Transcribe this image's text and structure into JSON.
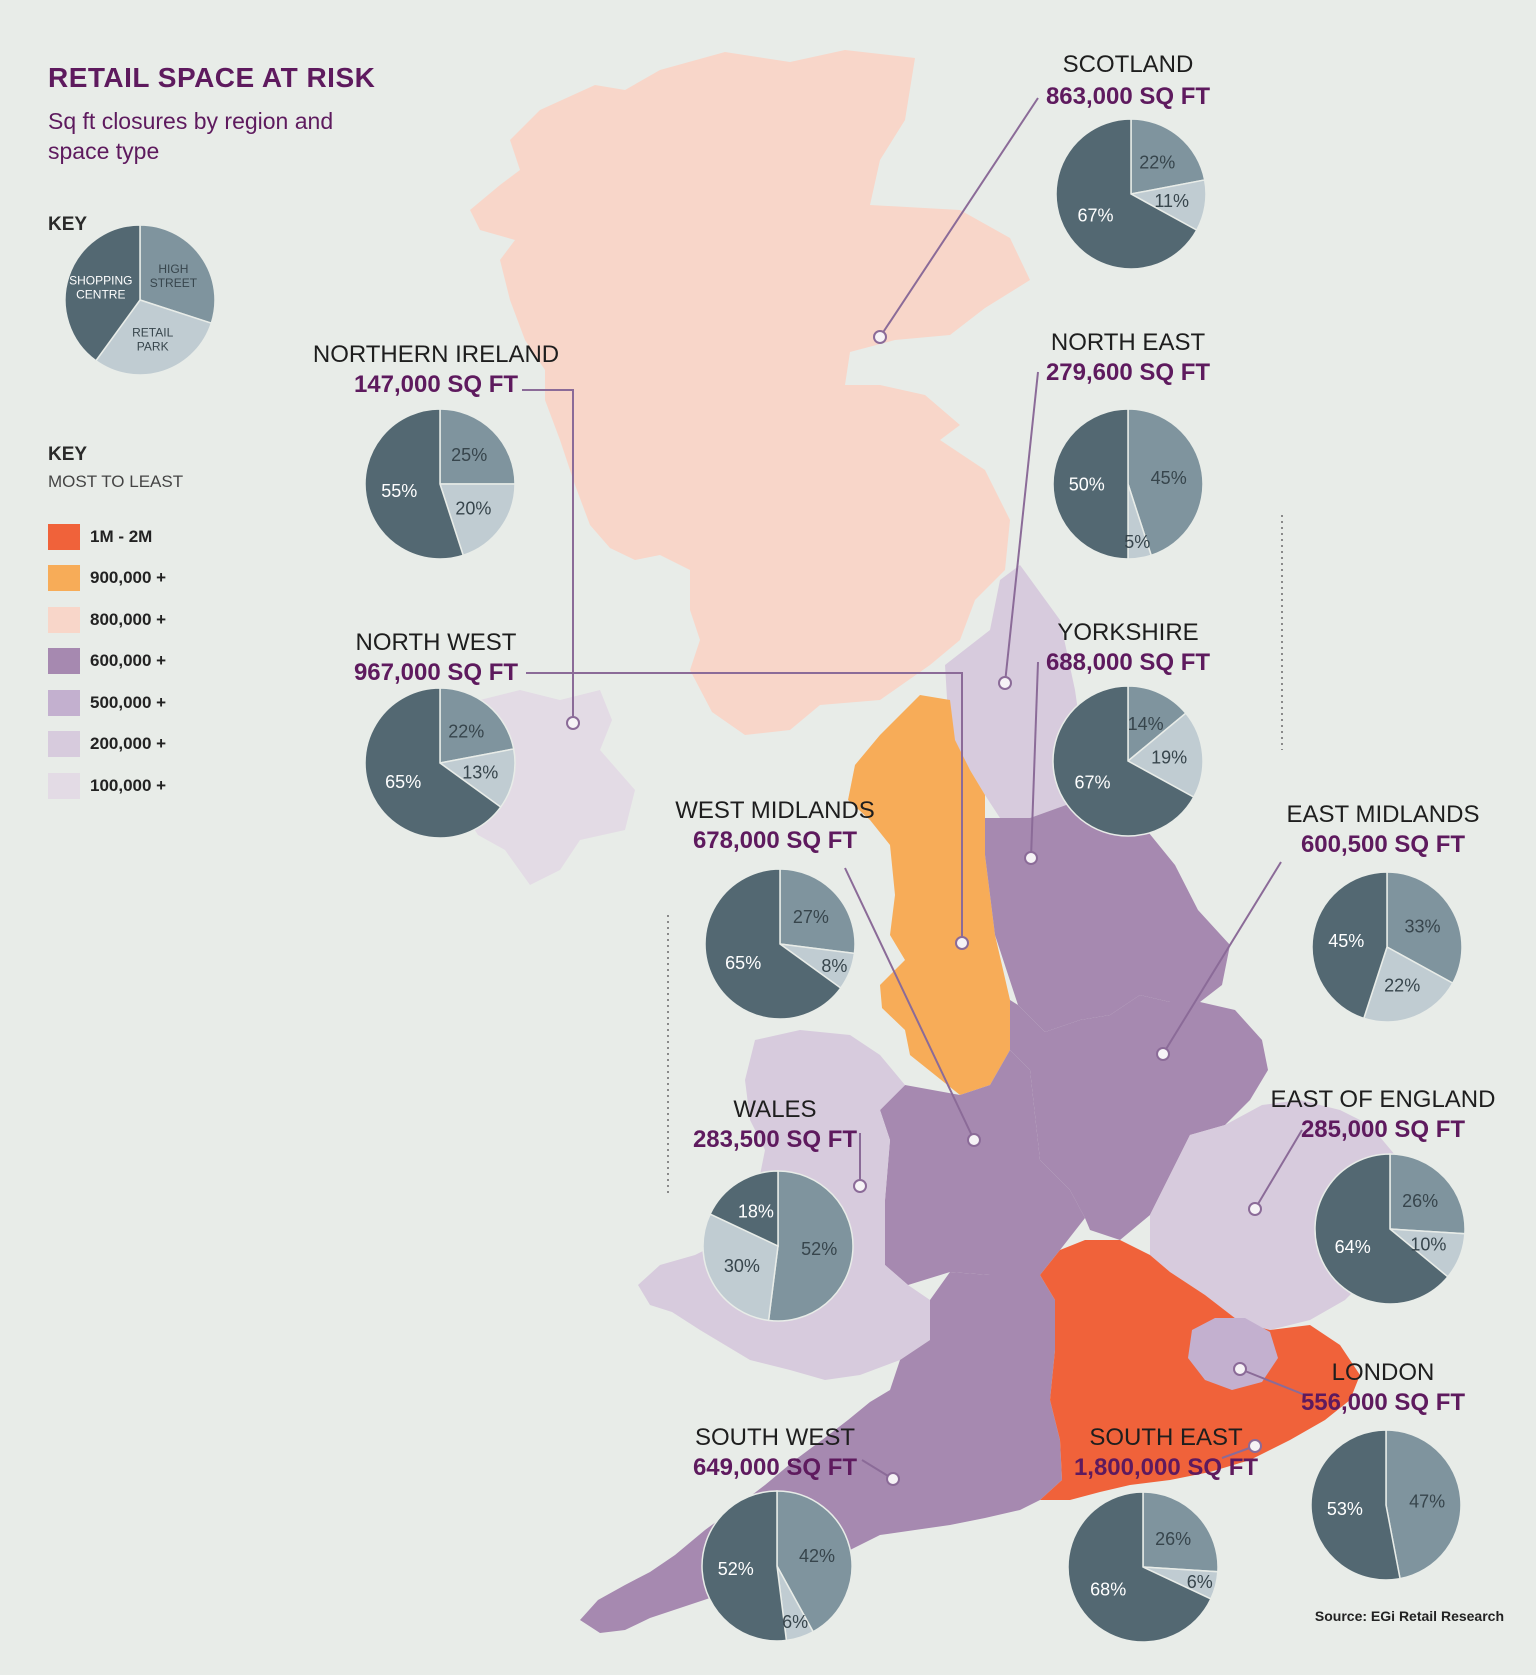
{
  "title": "RETAIL SPACE AT RISK",
  "subtitle": "Sq ft closures by region and space type",
  "key_pie": {
    "heading": "KEY",
    "segments": [
      {
        "label": "SHOPPING CENTRE",
        "pct": 40,
        "color": "#536872"
      },
      {
        "label": "HIGH STREET",
        "pct": 30,
        "color": "#7f949e"
      },
      {
        "label": "RETAIL PARK",
        "pct": 30,
        "color": "#c0ccd2"
      }
    ]
  },
  "legend": {
    "heading": "KEY",
    "subheading": "MOST TO LEAST",
    "items": [
      {
        "label": "1M - 2M",
        "color": "#f0623a"
      },
      {
        "label": "900,000 +",
        "color": "#f7ac58"
      },
      {
        "label": "800,000 +",
        "color": "#f8d6c9"
      },
      {
        "label": "600,000 +",
        "color": "#a689b0"
      },
      {
        "label": "500,000 +",
        "color": "#c3b0cf"
      },
      {
        "label": "200,000 +",
        "color": "#d7cbdd"
      },
      {
        "label": "100,000 +",
        "color": "#e3dbe5"
      }
    ]
  },
  "regions": [
    {
      "name": "SCOTLAND",
      "value": "863,000 SQ FT",
      "color": "#f8d6c9",
      "shares": {
        "high_street": 22,
        "retail_park": 11,
        "shopping_centre": 67
      }
    },
    {
      "name": "NORTHERN IRELAND",
      "value": "147,000 SQ FT",
      "color": "#e3dbe5",
      "shares": {
        "high_street": 25,
        "retail_park": 20,
        "shopping_centre": 55
      }
    },
    {
      "name": "NORTH EAST",
      "value": "279,600 SQ FT",
      "color": "#d7cbdd",
      "shares": {
        "high_street": 45,
        "retail_park": 5,
        "shopping_centre": 50
      }
    },
    {
      "name": "NORTH WEST",
      "value": "967,000 SQ FT",
      "color": "#f7ac58",
      "shares": {
        "high_street": 22,
        "retail_park": 13,
        "shopping_centre": 65
      }
    },
    {
      "name": "YORKSHIRE",
      "value": "688,000 SQ FT",
      "color": "#a689b0",
      "shares": {
        "high_street": 14,
        "retail_park": 19,
        "shopping_centre": 67
      }
    },
    {
      "name": "WEST MIDLANDS",
      "value": "678,000 SQ FT",
      "color": "#a689b0",
      "shares": {
        "high_street": 27,
        "retail_park": 8,
        "shopping_centre": 65
      }
    },
    {
      "name": "EAST MIDLANDS",
      "value": "600,500 SQ FT",
      "color": "#a689b0",
      "shares": {
        "high_street": 33,
        "retail_park": 22,
        "shopping_centre": 45
      }
    },
    {
      "name": "WALES",
      "value": "283,500 SQ FT",
      "color": "#d7cbdd",
      "shares": {
        "high_street": 52,
        "retail_park": 30,
        "shopping_centre": 18
      }
    },
    {
      "name": "EAST OF ENGLAND",
      "value": "285,000 SQ FT",
      "color": "#d7cbdd",
      "shares": {
        "high_street": 26,
        "retail_park": 10,
        "shopping_centre": 64
      }
    },
    {
      "name": "LONDON",
      "value": "556,000 SQ FT",
      "color": "#c3b0cf",
      "shares": {
        "high_street": 47,
        "retail_park": 0,
        "shopping_centre": 53
      }
    },
    {
      "name": "SOUTH WEST",
      "value": "649,000 SQ FT",
      "color": "#a689b0",
      "shares": {
        "high_street": 42,
        "retail_park": 6,
        "shopping_centre": 52
      }
    },
    {
      "name": "SOUTH EAST",
      "value": "1,800,000 SQ FT",
      "color": "#f0623a",
      "shares": {
        "high_street": 26,
        "retail_park": 6,
        "shopping_centre": 68
      }
    }
  ],
  "source": "Source: EGi Retail Research"
}
